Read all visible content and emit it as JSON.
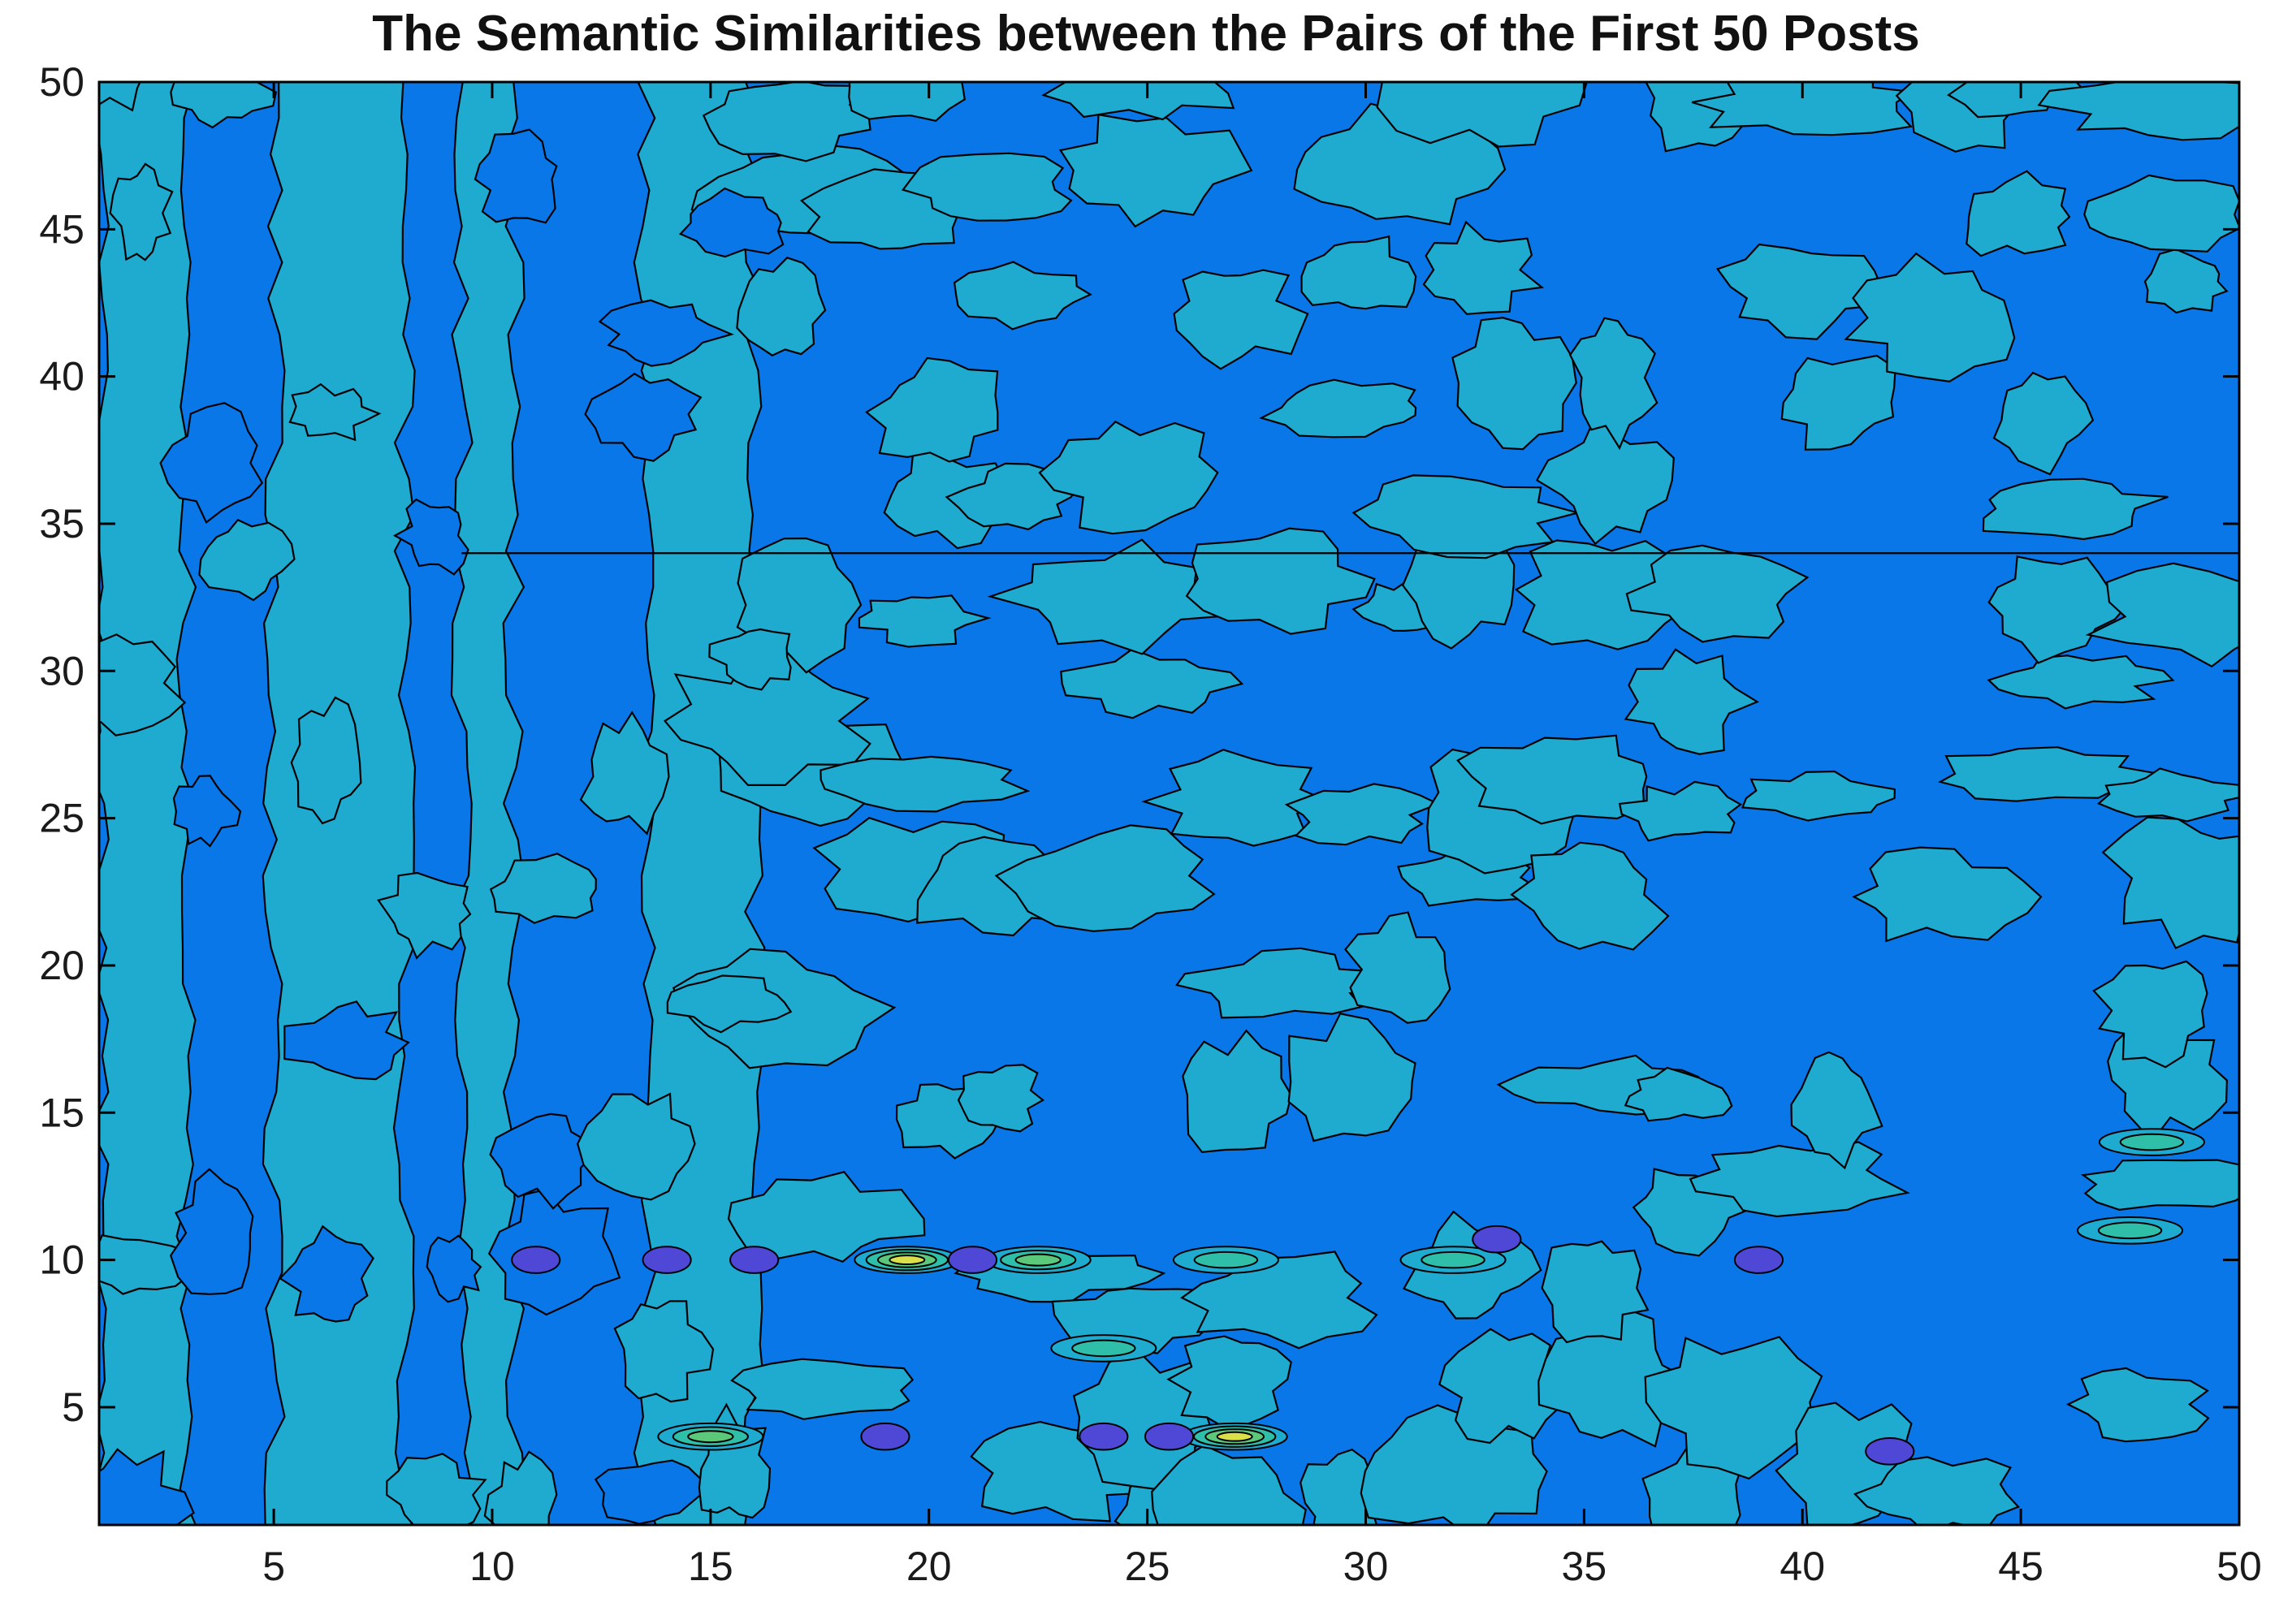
{
  "chart_data": {
    "type": "heatmap",
    "subtype": "filled-contour",
    "title": "The Semantic Similarities between the Pairs of the First 50 Posts",
    "xlabel": "",
    "ylabel": "",
    "xlim": [
      1,
      50
    ],
    "ylim": [
      1,
      50
    ],
    "xticks": [
      5,
      10,
      15,
      20,
      25,
      30,
      35,
      40,
      45,
      50
    ],
    "yticks": [
      5,
      10,
      15,
      20,
      25,
      30,
      35,
      40,
      45,
      50
    ],
    "grid": false,
    "legend": "none",
    "colormap": "parula",
    "level_colors": [
      "#0A77E8",
      "#1FAACF",
      "#2FBFA8",
      "#5CC87A",
      "#D9E04A",
      "#4F47D6"
    ],
    "description_levels": {
      "low": "#0A77E8",
      "mid": "#1FAACF",
      "high": "#D9E04A",
      "dip": "#4F47D6"
    },
    "band_columns": [
      {
        "x_range": [
          1,
          3
        ],
        "level": 1
      },
      {
        "x_range": [
          4,
          4.5
        ],
        "level": 0
      },
      {
        "x_range": [
          5,
          8
        ],
        "level": 1
      },
      {
        "x_range": [
          9,
          9.3
        ],
        "level": 0
      },
      {
        "x_range": [
          9.3,
          10.5
        ],
        "level": 1
      },
      {
        "x_range": [
          10.5,
          13.5
        ],
        "level": 0
      },
      {
        "x_range": [
          13.5,
          16
        ],
        "level": 1
      }
    ],
    "horizontal_bands": [
      {
        "y_range": [
          34,
          50
        ],
        "x_range": [
          18,
          50
        ],
        "level": 0
      },
      {
        "y_range": [
          1,
          13
        ],
        "x_range": [
          10,
          50
        ],
        "level": 0
      }
    ],
    "peaks": [
      {
        "x": 19.5,
        "y": 10,
        "value": "high",
        "level": 4
      },
      {
        "x": 27,
        "y": 4,
        "value": "high",
        "level": 4
      },
      {
        "x": 22.5,
        "y": 10,
        "value": "elevated",
        "level": 3
      },
      {
        "x": 15,
        "y": 4,
        "value": "elevated",
        "level": 3
      },
      {
        "x": 26.8,
        "y": 10,
        "value": "elevated",
        "level": 2
      },
      {
        "x": 32,
        "y": 10,
        "value": "elevated",
        "level": 2
      },
      {
        "x": 47.5,
        "y": 11,
        "value": "elevated",
        "level": 2
      },
      {
        "x": 48,
        "y": 14,
        "value": "elevated",
        "level": 2
      },
      {
        "x": 24,
        "y": 7,
        "value": "elevated",
        "level": 2
      }
    ],
    "dips": [
      {
        "x": 11,
        "y": 10,
        "level": 5
      },
      {
        "x": 14,
        "y": 10,
        "level": 5
      },
      {
        "x": 16,
        "y": 10,
        "level": 5
      },
      {
        "x": 19,
        "y": 4,
        "level": 5
      },
      {
        "x": 24,
        "y": 4,
        "level": 5
      },
      {
        "x": 25.5,
        "y": 4,
        "level": 5
      },
      {
        "x": 42,
        "y": 3.5,
        "level": 5
      },
      {
        "x": 33,
        "y": 10.7,
        "level": 5
      },
      {
        "x": 39,
        "y": 10,
        "level": 5
      },
      {
        "x": 21,
        "y": 10,
        "level": 5
      }
    ]
  }
}
